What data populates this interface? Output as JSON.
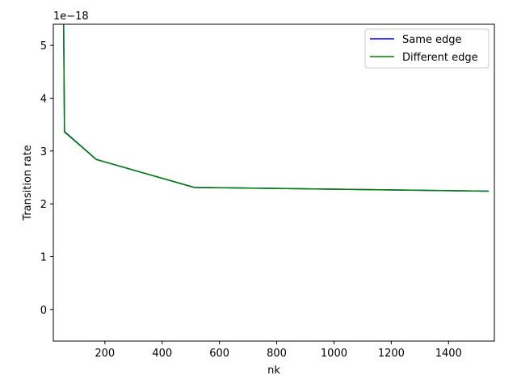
{
  "chart_data": {
    "type": "line",
    "xlabel": "nk",
    "ylabel": "Transition rate",
    "y_offset_label": "1e−18",
    "xlim": [
      20,
      1560
    ],
    "ylim": [
      -0.6,
      5.4
    ],
    "xticks": [
      200,
      400,
      600,
      800,
      1000,
      1200,
      1400
    ],
    "xtick_labels": [
      "200",
      "400",
      "600",
      "800",
      "1000",
      "1200",
      "1400"
    ],
    "yticks": [
      0,
      1,
      2,
      3,
      4,
      5
    ],
    "ytick_labels": [
      "0",
      "1",
      "2",
      "3",
      "4",
      "5"
    ],
    "grid": false,
    "legend_position": "upper right",
    "series": [
      {
        "name": "Same edge",
        "color": "#0000ff",
        "x": [
          56,
          56,
          59,
          170,
          512,
          1540
        ],
        "y": [
          5.45,
          5.45,
          3.37,
          2.84,
          2.31,
          2.24
        ]
      },
      {
        "name": "Different edge",
        "color": "#008000",
        "x": [
          56,
          56,
          59,
          170,
          512,
          1540
        ],
        "y": [
          5.45,
          5.45,
          3.36,
          2.84,
          2.31,
          2.24
        ]
      }
    ]
  }
}
